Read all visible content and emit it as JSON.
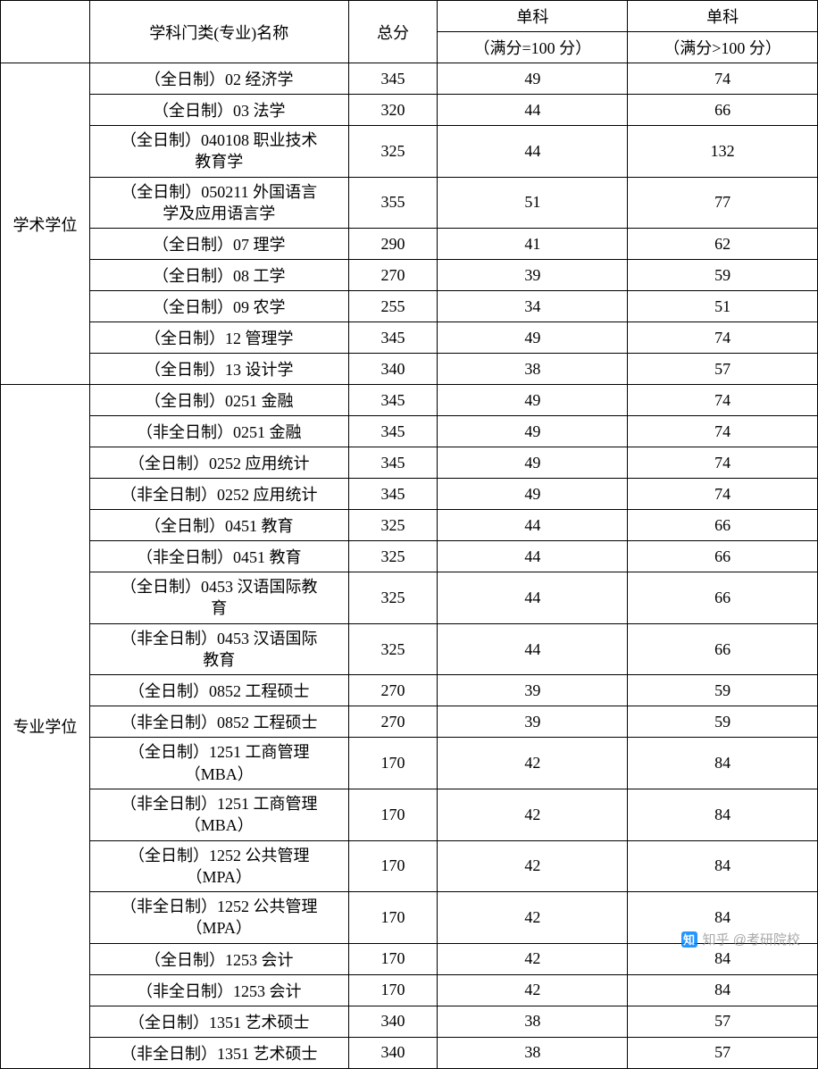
{
  "table": {
    "header": {
      "category": "",
      "name": "学科门类(专业)名称",
      "total": "总分",
      "subject": "单科",
      "sub1_detail": "（满分=100 分）",
      "sub2_detail": "（满分>100 分）"
    },
    "sections": [
      {
        "category": "学术学位",
        "rows": [
          {
            "name": "（全日制）02 经济学",
            "total": "345",
            "sub1": "49",
            "sub2": "74",
            "twoLine": false
          },
          {
            "name": "（全日制）03 法学",
            "total": "320",
            "sub1": "44",
            "sub2": "66",
            "twoLine": false
          },
          {
            "name": "（全日制）040108 职业技术\n教育学",
            "total": "325",
            "sub1": "44",
            "sub2": "132",
            "twoLine": true
          },
          {
            "name": "（全日制）050211 外国语言\n学及应用语言学",
            "total": "355",
            "sub1": "51",
            "sub2": "77",
            "twoLine": true
          },
          {
            "name": "（全日制）07 理学",
            "total": "290",
            "sub1": "41",
            "sub2": "62",
            "twoLine": false
          },
          {
            "name": "（全日制）08 工学",
            "total": "270",
            "sub1": "39",
            "sub2": "59",
            "twoLine": false
          },
          {
            "name": "（全日制）09 农学",
            "total": "255",
            "sub1": "34",
            "sub2": "51",
            "twoLine": false
          },
          {
            "name": "（全日制）12 管理学",
            "total": "345",
            "sub1": "49",
            "sub2": "74",
            "twoLine": false
          },
          {
            "name": "（全日制）13 设计学",
            "total": "340",
            "sub1": "38",
            "sub2": "57",
            "twoLine": false
          }
        ]
      },
      {
        "category": "专业学位",
        "rows": [
          {
            "name": "（全日制）0251 金融",
            "total": "345",
            "sub1": "49",
            "sub2": "74",
            "twoLine": false
          },
          {
            "name": "（非全日制）0251 金融",
            "total": "345",
            "sub1": "49",
            "sub2": "74",
            "twoLine": false
          },
          {
            "name": "（全日制）0252 应用统计",
            "total": "345",
            "sub1": "49",
            "sub2": "74",
            "twoLine": false
          },
          {
            "name": "（非全日制）0252 应用统计",
            "total": "345",
            "sub1": "49",
            "sub2": "74",
            "twoLine": false
          },
          {
            "name": "（全日制）0451 教育",
            "total": "325",
            "sub1": "44",
            "sub2": "66",
            "twoLine": false
          },
          {
            "name": "（非全日制）0451 教育",
            "total": "325",
            "sub1": "44",
            "sub2": "66",
            "twoLine": false
          },
          {
            "name": "（全日制）0453 汉语国际教\n育",
            "total": "325",
            "sub1": "44",
            "sub2": "66",
            "twoLine": true
          },
          {
            "name": "（非全日制）0453 汉语国际\n教育",
            "total": "325",
            "sub1": "44",
            "sub2": "66",
            "twoLine": true
          },
          {
            "name": "（全日制）0852 工程硕士",
            "total": "270",
            "sub1": "39",
            "sub2": "59",
            "twoLine": false
          },
          {
            "name": "（非全日制）0852 工程硕士",
            "total": "270",
            "sub1": "39",
            "sub2": "59",
            "twoLine": false
          },
          {
            "name": "（全日制）1251 工商管理\n（MBA）",
            "total": "170",
            "sub1": "42",
            "sub2": "84",
            "twoLine": true
          },
          {
            "name": "（非全日制）1251 工商管理\n（MBA）",
            "total": "170",
            "sub1": "42",
            "sub2": "84",
            "twoLine": true
          },
          {
            "name": "（全日制）1252 公共管理\n（MPA）",
            "total": "170",
            "sub1": "42",
            "sub2": "84",
            "twoLine": true
          },
          {
            "name": "（非全日制）1252 公共管理\n（MPA）",
            "total": "170",
            "sub1": "42",
            "sub2": "84",
            "twoLine": true
          },
          {
            "name": "（全日制）1253 会计",
            "total": "170",
            "sub1": "42",
            "sub2": "84",
            "twoLine": false
          },
          {
            "name": "（非全日制）1253 会计",
            "total": "170",
            "sub1": "42",
            "sub2": "84",
            "twoLine": false
          },
          {
            "name": "（全日制）1351 艺术硕士",
            "total": "340",
            "sub1": "38",
            "sub2": "57",
            "twoLine": false
          },
          {
            "name": "（非全日制）1351 艺术硕士",
            "total": "340",
            "sub1": "38",
            "sub2": "57",
            "twoLine": false
          }
        ]
      }
    ],
    "column_widths": {
      "category": 100,
      "name": 290,
      "total": 100,
      "sub1": 213,
      "sub2": 213
    },
    "styling": {
      "border_color": "#000000",
      "background_color": "#ffffff",
      "font_family": "SimSun",
      "font_size": 18,
      "text_align": "center"
    }
  },
  "watermark": {
    "logo_text": "知",
    "text": "知乎 @考研院校",
    "logo_bg": "#0084ff",
    "text_color": "#999999"
  }
}
